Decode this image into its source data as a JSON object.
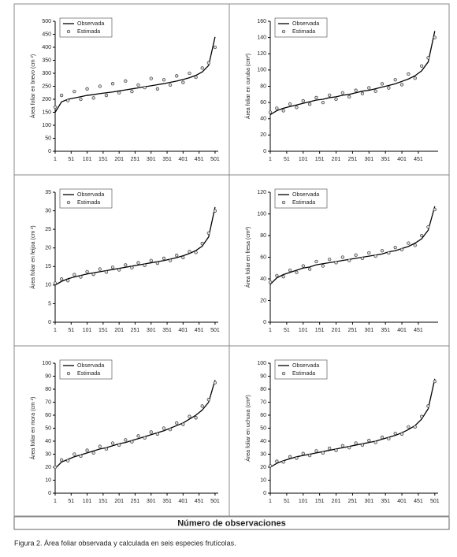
{
  "chart_data": [
    {
      "type": "line",
      "y_label": "Área foliar en brevo (cm ²)",
      "x": [
        1,
        21,
        41,
        61,
        81,
        101,
        121,
        141,
        161,
        181,
        201,
        221,
        241,
        261,
        281,
        301,
        321,
        341,
        361,
        381,
        401,
        421,
        441,
        461,
        481,
        501
      ],
      "xlim": [
        1,
        511
      ],
      "xticks": [
        1,
        51,
        101,
        151,
        201,
        251,
        301,
        351,
        401,
        451,
        501
      ],
      "ylim": [
        0,
        500
      ],
      "yticks": [
        0,
        50,
        100,
        150,
        200,
        250,
        300,
        350,
        400,
        450,
        500
      ],
      "legend": "upper left",
      "series": [
        {
          "name": "Observada",
          "mode": "line",
          "color": "#000000",
          "values": [
            150,
            190,
            200,
            205,
            210,
            215,
            218,
            222,
            225,
            228,
            232,
            236,
            240,
            244,
            248,
            252,
            256,
            260,
            265,
            270,
            276,
            283,
            292,
            305,
            330,
            440
          ]
        },
        {
          "name": "Estimada",
          "mode": "markers",
          "color": "#333333",
          "values": [
            170,
            215,
            195,
            230,
            200,
            240,
            205,
            250,
            215,
            260,
            225,
            270,
            230,
            255,
            245,
            280,
            240,
            275,
            255,
            290,
            265,
            300,
            285,
            320,
            340,
            400
          ]
        }
      ]
    },
    {
      "type": "line",
      "y_label": "Área foliar en curuba (cm²)",
      "x": [
        1,
        21,
        41,
        61,
        81,
        101,
        121,
        141,
        161,
        181,
        201,
        221,
        241,
        261,
        281,
        301,
        321,
        341,
        361,
        381,
        401,
        421,
        441,
        461,
        481,
        501
      ],
      "xlim": [
        1,
        511
      ],
      "xticks": [
        1,
        51,
        101,
        151,
        201,
        251,
        301,
        351,
        401,
        451
      ],
      "ylim": [
        0,
        160
      ],
      "yticks": [
        0,
        20,
        40,
        60,
        80,
        100,
        120,
        140,
        160
      ],
      "legend": "upper left",
      "series": [
        {
          "name": "Observada",
          "mode": "line",
          "color": "#000000",
          "values": [
            45,
            50,
            53,
            55,
            57,
            59,
            61,
            63,
            64,
            66,
            67,
            69,
            70,
            72,
            74,
            75,
            77,
            79,
            81,
            83,
            86,
            89,
            93,
            99,
            110,
            148
          ]
        },
        {
          "name": "Estimada",
          "mode": "markers",
          "color": "#333333",
          "values": [
            48,
            53,
            50,
            58,
            54,
            62,
            58,
            66,
            60,
            69,
            64,
            72,
            67,
            75,
            71,
            78,
            74,
            83,
            78,
            88,
            82,
            95,
            90,
            105,
            115,
            140
          ]
        }
      ]
    },
    {
      "type": "line",
      "y_label": "Área foliar en feijoa (cm ²)",
      "x": [
        1,
        21,
        41,
        61,
        81,
        101,
        121,
        141,
        161,
        181,
        201,
        221,
        241,
        261,
        281,
        301,
        321,
        341,
        361,
        381,
        401,
        421,
        441,
        461,
        481,
        501
      ],
      "xlim": [
        1,
        511
      ],
      "xticks": [
        1,
        51,
        101,
        151,
        201,
        251,
        301,
        351,
        401,
        451,
        501
      ],
      "ylim": [
        0,
        35
      ],
      "yticks": [
        0,
        5,
        10,
        15,
        20,
        25,
        30,
        35
      ],
      "legend": "upper left",
      "series": [
        {
          "name": "Observada",
          "mode": "line",
          "color": "#000000",
          "values": [
            10,
            11,
            11.7,
            12.2,
            12.6,
            13,
            13.3,
            13.6,
            13.9,
            14.2,
            14.5,
            14.8,
            15.1,
            15.4,
            15.7,
            16,
            16.3,
            16.6,
            17,
            17.4,
            17.9,
            18.5,
            19.3,
            20.5,
            23,
            31
          ]
        },
        {
          "name": "Estimada",
          "mode": "markers",
          "color": "#333333",
          "values": [
            10.5,
            11.6,
            11.2,
            12.8,
            12.2,
            13.6,
            12.9,
            14.3,
            13.5,
            14.8,
            14.1,
            15.4,
            14.7,
            16,
            15.3,
            16.6,
            15.9,
            17.2,
            16.6,
            18,
            17.4,
            19,
            18.8,
            21.2,
            24,
            30
          ]
        }
      ]
    },
    {
      "type": "line",
      "y_label": "Área foliar en fresa (cm²)",
      "x": [
        1,
        21,
        41,
        61,
        81,
        101,
        121,
        141,
        161,
        181,
        201,
        221,
        241,
        261,
        281,
        301,
        321,
        341,
        361,
        381,
        401,
        421,
        441,
        461,
        481,
        501
      ],
      "xlim": [
        1,
        511
      ],
      "xticks": [
        1,
        51,
        101,
        151,
        201,
        251,
        301,
        351,
        401,
        451
      ],
      "ylim": [
        0,
        120
      ],
      "yticks": [
        0,
        20,
        40,
        60,
        80,
        100,
        120
      ],
      "legend": "upper left",
      "series": [
        {
          "name": "Observada",
          "mode": "line",
          "color": "#000000",
          "values": [
            35,
            41,
            44,
            46,
            48,
            50,
            51,
            53,
            54,
            55,
            56,
            57,
            58,
            59,
            60,
            61,
            62,
            63,
            65,
            66,
            68,
            70,
            73,
            77,
            85,
            107
          ]
        },
        {
          "name": "Estimada",
          "mode": "markers",
          "color": "#333333",
          "values": [
            37,
            43,
            42,
            48,
            46,
            52,
            49,
            56,
            52,
            58,
            55,
            60,
            57,
            62,
            59,
            64,
            61,
            66,
            64,
            69,
            67,
            73,
            71,
            80,
            88,
            104
          ]
        }
      ]
    },
    {
      "type": "line",
      "y_label": "Área foliar en mora (cm ²)",
      "x": [
        1,
        21,
        41,
        61,
        81,
        101,
        121,
        141,
        161,
        181,
        201,
        221,
        241,
        261,
        281,
        301,
        321,
        341,
        361,
        381,
        401,
        421,
        441,
        461,
        481,
        501
      ],
      "xlim": [
        1,
        511
      ],
      "xticks": [
        1,
        51,
        101,
        151,
        201,
        251,
        301,
        351,
        401,
        451,
        501
      ],
      "ylim": [
        0,
        100
      ],
      "yticks": [
        0,
        10,
        20,
        30,
        40,
        50,
        60,
        70,
        80,
        90,
        100
      ],
      "legend": "upper left",
      "series": [
        {
          "name": "Observada",
          "mode": "line",
          "color": "#000000",
          "values": [
            19,
            24,
            26,
            28,
            29.5,
            31,
            32.5,
            34,
            35,
            36.5,
            38,
            39,
            40.5,
            42,
            43.5,
            45,
            46.5,
            48,
            50,
            52,
            54,
            57,
            60,
            64,
            70,
            87
          ]
        },
        {
          "name": "Estimada",
          "mode": "markers",
          "color": "#333333",
          "values": [
            20,
            25.5,
            25,
            30,
            28.5,
            33,
            31,
            36,
            34,
            38.5,
            37,
            41,
            39.5,
            44,
            42.5,
            47,
            45.5,
            50,
            49,
            54,
            53,
            59,
            58,
            67,
            72,
            85
          ]
        }
      ]
    },
    {
      "type": "line",
      "y_label": "Área foliar en uchuva (cm²)",
      "x": [
        1,
        21,
        41,
        61,
        81,
        101,
        121,
        141,
        161,
        181,
        201,
        221,
        241,
        261,
        281,
        301,
        321,
        341,
        361,
        381,
        401,
        421,
        441,
        461,
        481,
        501
      ],
      "xlim": [
        1,
        511
      ],
      "xticks": [
        1,
        51,
        101,
        151,
        201,
        251,
        301,
        351,
        401,
        451,
        501
      ],
      "ylim": [
        0,
        100
      ],
      "yticks": [
        0,
        10,
        20,
        30,
        40,
        50,
        60,
        70,
        80,
        90,
        100
      ],
      "legend": "upper left",
      "series": [
        {
          "name": "Observada",
          "mode": "line",
          "color": "#000000",
          "values": [
            20,
            23,
            25,
            26.5,
            28,
            29,
            30,
            31,
            32,
            33,
            34,
            35,
            36,
            37,
            38,
            39,
            40,
            41.5,
            43,
            44.5,
            46.5,
            49,
            52,
            57,
            65,
            88
          ]
        },
        {
          "name": "Estimada",
          "mode": "markers",
          "color": "#333333",
          "values": [
            21,
            24.5,
            24,
            28,
            27,
            30.5,
            29,
            32.5,
            31,
            34.5,
            33,
            36.5,
            35,
            38.5,
            37,
            40.5,
            39,
            43,
            42,
            46,
            45.5,
            51,
            51,
            59,
            67,
            86
          ]
        }
      ]
    }
  ],
  "x_axis_title": "Número de observaciones",
  "caption": "Figura 2. Área foliar observada y calculada en seis especies frutícolas."
}
